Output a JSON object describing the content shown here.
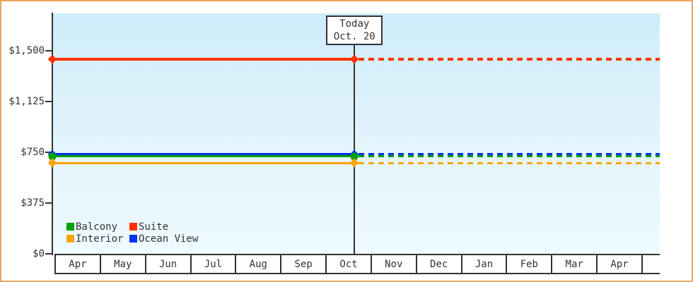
{
  "window": {
    "border_color": "#e9a55f",
    "text_color": "#333333"
  },
  "chart_data": {
    "type": "line",
    "title": "",
    "description": "Cruise cabin price history by month; flat prices, solid before today, dashed projection after today",
    "x_months": [
      "Apr",
      "May",
      "Jun",
      "Jul",
      "Aug",
      "Sep",
      "Oct",
      "Nov",
      "Dec",
      "Jan",
      "Feb",
      "Mar",
      "Apr"
    ],
    "y_axis": {
      "tick_labels": [
        "$1,500",
        "$1,125",
        "$750",
        "$375",
        "$0"
      ],
      "tick_values": [
        1500,
        1125,
        750,
        375,
        0
      ],
      "ylim": [
        0,
        1500
      ]
    },
    "today": {
      "label_line1": "Today",
      "label_line2": "Oct. 20",
      "month_index": 6,
      "day_fraction": 0.645
    },
    "series": [
      {
        "name": "Suite",
        "color": "#ff3300",
        "price": 1440,
        "marker": "diamond",
        "thickness": 4
      },
      {
        "name": "Ocean View",
        "color": "#0033ee",
        "price": 735,
        "marker": "diamond",
        "thickness": 3
      },
      {
        "name": "Balcony",
        "color": "#00a000",
        "price": 720,
        "marker": "circle",
        "thickness": 3
      },
      {
        "name": "Interior",
        "color": "#ffa500",
        "price": 670,
        "marker": "diamond",
        "thickness": 3
      }
    ],
    "legend_order": [
      "Balcony",
      "Suite",
      "Interior",
      "Ocean View"
    ],
    "line_style": "solid-before-today-dashed-after",
    "grid": false,
    "legend_position": "bottom-left-inside-plot"
  }
}
